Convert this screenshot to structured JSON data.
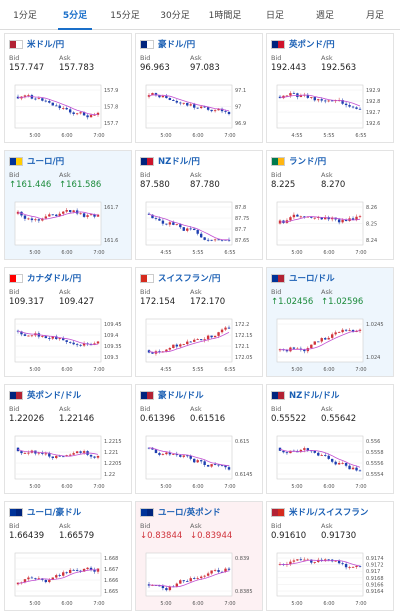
{
  "tabs": [
    "1分足",
    "5分足",
    "15分足",
    "30分足",
    "1時間足",
    "日足",
    "週足",
    "月足"
  ],
  "active_tab": 1,
  "labels": {
    "bid": "Bid",
    "ask": "Ask"
  },
  "cards": [
    {
      "name": "米ドル/円",
      "flag": [
        "#b22234",
        "#ffffff"
      ],
      "bid": "157.747",
      "ask": "157.783",
      "dir": "",
      "yticks": [
        "157.9",
        "157.8",
        "157.7"
      ],
      "xticks": [
        "5:00",
        "6:00",
        "7:00"
      ],
      "trend": -1,
      "hl": ""
    },
    {
      "name": "豪ドル/円",
      "flag": [
        "#00247d",
        "#ffffff"
      ],
      "bid": "96.963",
      "ask": "97.083",
      "dir": "",
      "yticks": [
        "97.1",
        "97",
        "96.9"
      ],
      "xticks": [
        "5:00",
        "6:00",
        "7:00"
      ],
      "trend": -1,
      "hl": ""
    },
    {
      "name": "英ポンド/円",
      "flag": [
        "#00247d",
        "#cf142b"
      ],
      "bid": "192.443",
      "ask": "192.563",
      "dir": "",
      "yticks": [
        "192.9",
        "192.8",
        "192.7",
        "192.6"
      ],
      "xticks": [
        "4:55",
        "5:55",
        "6:55"
      ],
      "trend": -1,
      "hl": ""
    },
    {
      "name": "ユーロ/円",
      "flag": [
        "#003399",
        "#ffcc00"
      ],
      "bid": "↑161.446",
      "ask": "↑161.586",
      "dir": "up",
      "yticks": [
        "161.7",
        "161.6"
      ],
      "xticks": [
        "5:00",
        "6:00",
        "7:00"
      ],
      "trend": -1,
      "hl": "blue"
    },
    {
      "name": "NZドル/円",
      "flag": [
        "#00247d",
        "#cc142b"
      ],
      "bid": "87.580",
      "ask": "87.780",
      "dir": "",
      "yticks": [
        "87.8",
        "87.75",
        "87.7",
        "87.65"
      ],
      "xticks": [
        "4:55",
        "5:55",
        "6:55"
      ],
      "trend": -1,
      "hl": ""
    },
    {
      "name": "ランド/円",
      "flag": [
        "#007a4d",
        "#ffb612"
      ],
      "bid": "8.225",
      "ask": "8.270",
      "dir": "",
      "yticks": [
        "8.26",
        "8.25",
        "8.24"
      ],
      "xticks": [
        "5:00",
        "6:00",
        "7:00"
      ],
      "trend": 0,
      "hl": ""
    },
    {
      "name": "カナダドル/円",
      "flag": [
        "#ff0000",
        "#ffffff"
      ],
      "bid": "109.317",
      "ask": "109.427",
      "dir": "",
      "yticks": [
        "109.45",
        "109.4",
        "109.35",
        "109.3"
      ],
      "xticks": [
        "5:00",
        "6:00",
        "7:00"
      ],
      "trend": -1,
      "hl": ""
    },
    {
      "name": "スイスフラン/円",
      "flag": [
        "#d52b1e",
        "#ffffff"
      ],
      "bid": "172.154",
      "ask": "172.170",
      "dir": "",
      "yticks": [
        "172.2",
        "172.15",
        "172.1",
        "172.05"
      ],
      "xticks": [
        "4:55",
        "5:55",
        "6:55"
      ],
      "trend": 1,
      "hl": ""
    },
    {
      "name": "ユーロ/ドル",
      "flag": [
        "#003399",
        "#b22234"
      ],
      "bid": "↑1.02456",
      "ask": "↑1.02596",
      "dir": "up",
      "yticks": [
        "1.0245",
        "1.024"
      ],
      "xticks": [
        "5:00",
        "6:00",
        "7:00"
      ],
      "trend": 1,
      "hl": "blue"
    },
    {
      "name": "英ポンド/ドル",
      "flag": [
        "#00247d",
        "#b22234"
      ],
      "bid": "1.22026",
      "ask": "1.22146",
      "dir": "",
      "yticks": [
        "1.2215",
        "1.221",
        "1.2205",
        "1.22"
      ],
      "xticks": [
        "5:00",
        "6:00",
        "7:00"
      ],
      "trend": -1,
      "hl": ""
    },
    {
      "name": "豪ドル/ドル",
      "flag": [
        "#00247d",
        "#b22234"
      ],
      "bid": "0.61396",
      "ask": "0.61516",
      "dir": "",
      "yticks": [
        "0.615",
        "0.6145"
      ],
      "xticks": [
        "5:00",
        "6:00",
        "7:00"
      ],
      "trend": -1,
      "hl": ""
    },
    {
      "name": "NZドル/ドル",
      "flag": [
        "#00247d",
        "#b22234"
      ],
      "bid": "0.55522",
      "ask": "0.55642",
      "dir": "",
      "yticks": [
        "0.556",
        "0.5558",
        "0.5556",
        "0.5554"
      ],
      "xticks": [
        "5:00",
        "6:00",
        "7:00"
      ],
      "trend": -1,
      "hl": ""
    },
    {
      "name": "ユーロ/豪ドル",
      "flag": [
        "#003399",
        "#00247d"
      ],
      "bid": "1.66439",
      "ask": "1.66579",
      "dir": "",
      "yticks": [
        "1.668",
        "1.667",
        "1.666",
        "1.665"
      ],
      "xticks": [
        "5:00",
        "6:00",
        "7:00"
      ],
      "trend": 1,
      "hl": ""
    },
    {
      "name": "ユーロ/英ポンド",
      "flag": [
        "#003399",
        "#00247d"
      ],
      "bid": "↓0.83844",
      "ask": "↓0.83944",
      "dir": "down",
      "yticks": [
        "0.839",
        "0.8385"
      ],
      "xticks": [
        "5:00",
        "6:00",
        "7:00"
      ],
      "trend": 1,
      "hl": "pink"
    },
    {
      "name": "米ドル/スイスフラン",
      "flag": [
        "#b22234",
        "#d52b1e"
      ],
      "bid": "0.91610",
      "ask": "0.91730",
      "dir": "",
      "yticks": [
        "0.9174",
        "0.9172",
        "0.917",
        "0.9168",
        "0.9166",
        "0.9164"
      ],
      "xticks": [
        "5:00",
        "6:00",
        "7:00"
      ],
      "trend": -1,
      "hl": ""
    }
  ]
}
